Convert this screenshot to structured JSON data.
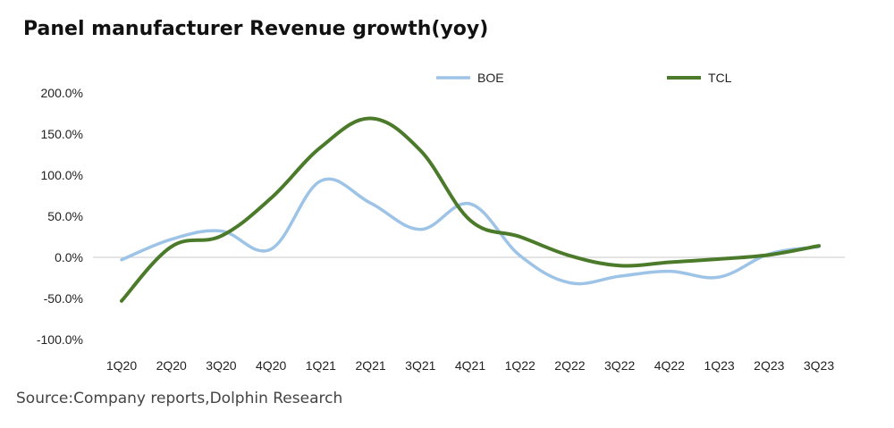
{
  "title": "Panel manufacturer Revenue growth(yoy)",
  "source": "Source:Company reports,Dolphin Research",
  "chart_data": {
    "type": "line",
    "categories": [
      "1Q20",
      "2Q20",
      "3Q20",
      "4Q20",
      "1Q21",
      "2Q21",
      "3Q21",
      "4Q21",
      "1Q22",
      "2Q22",
      "3Q22",
      "4Q22",
      "1Q23",
      "2Q23",
      "3Q23"
    ],
    "ylim": [
      -100,
      200
    ],
    "yticks": [
      200,
      150,
      100,
      50,
      0,
      -50,
      -100
    ],
    "ytick_labels": [
      "200.0%",
      "150.0%",
      "100.0%",
      "50.0%",
      "0.0%",
      "-50.0%",
      "-100.0%"
    ],
    "series": [
      {
        "name": "BOE",
        "color": "#9dc3e6",
        "values": [
          -3,
          22,
          32,
          10,
          93,
          66,
          34,
          65,
          2,
          -31,
          -23,
          -17,
          -24,
          4,
          13
        ]
      },
      {
        "name": "TCL",
        "color": "#4b7b2a",
        "values": [
          -53,
          13,
          26,
          72,
          134,
          169,
          130,
          45,
          25,
          2,
          -10,
          -6,
          -2,
          3,
          14
        ]
      }
    ]
  }
}
